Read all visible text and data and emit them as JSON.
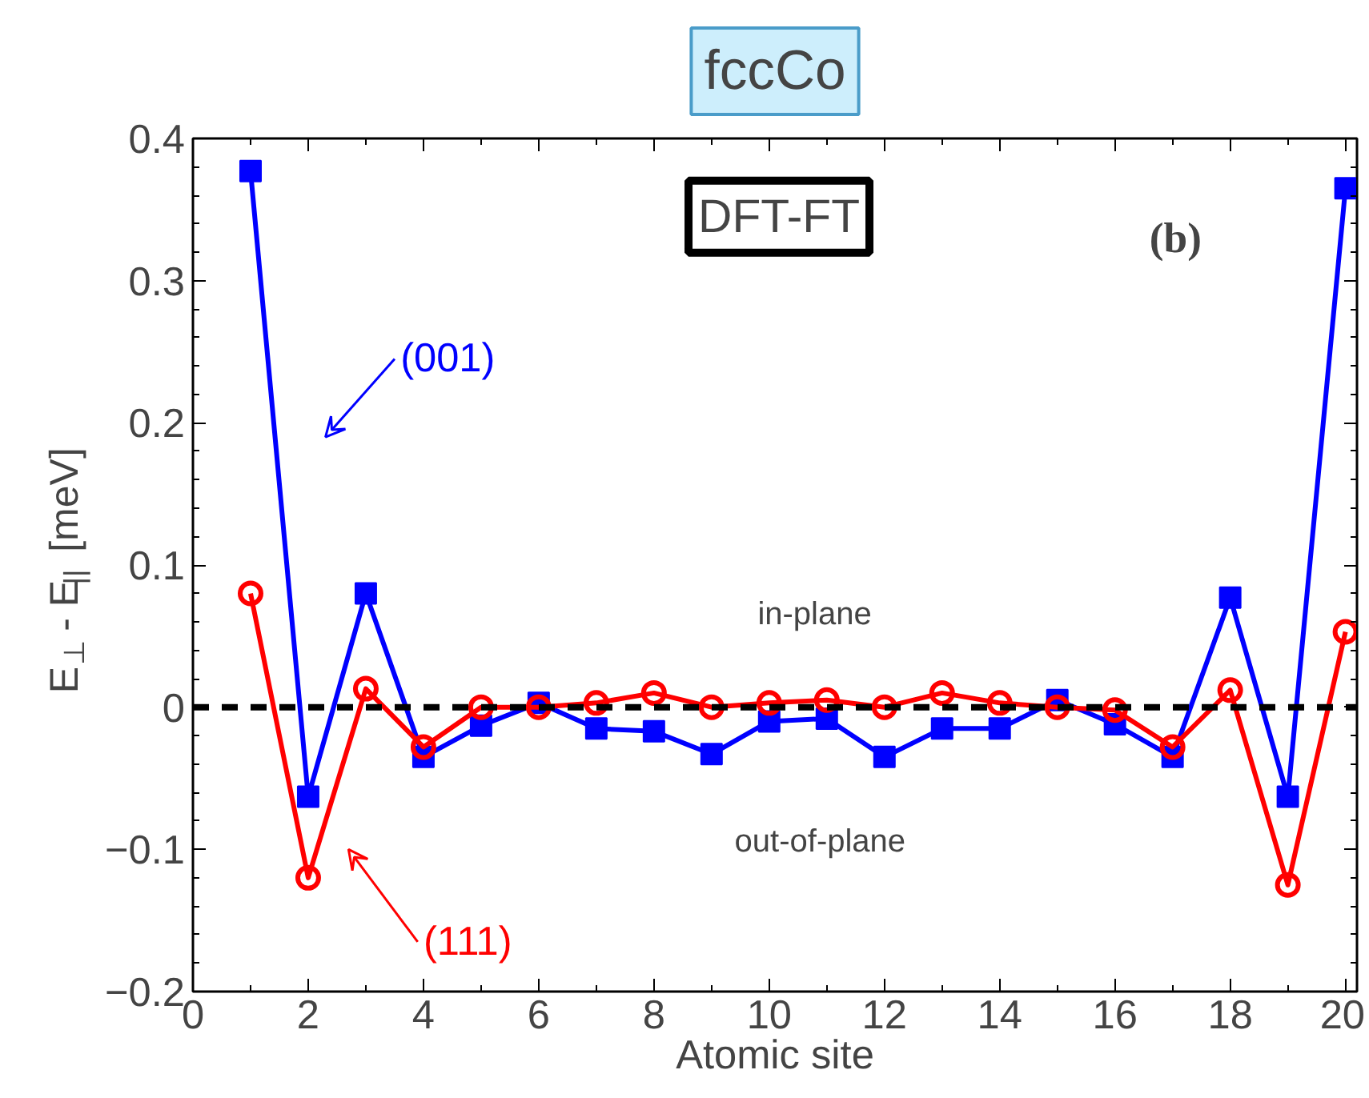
{
  "chart_data": {
    "type": "line",
    "title": "fccCo",
    "xlabel": "Atomic site",
    "ylabel": "E$_{⊥}$ - E$_{||}$ [meV]",
    "x": [
      1,
      2,
      3,
      4,
      5,
      6,
      7,
      8,
      9,
      10,
      11,
      12,
      13,
      14,
      15,
      16,
      17,
      18,
      19,
      20
    ],
    "series": [
      {
        "name": "(001)",
        "color": "#0000ff",
        "marker": "square",
        "values": [
          0.377,
          -0.063,
          0.08,
          -0.035,
          -0.013,
          0.003,
          -0.015,
          -0.017,
          -0.033,
          -0.01,
          -0.008,
          -0.035,
          -0.015,
          -0.015,
          0.005,
          -0.012,
          -0.035,
          0.077,
          -0.063,
          0.365
        ]
      },
      {
        "name": "(111)",
        "color": "#ff0000",
        "marker": "circle",
        "values": [
          0.08,
          -0.12,
          0.013,
          -0.028,
          0,
          0,
          0.003,
          0.01,
          0,
          0.003,
          0.005,
          0,
          0.01,
          0.003,
          0,
          -0.002,
          -0.028,
          0.012,
          -0.125,
          0.053
        ]
      }
    ],
    "xlim": [
      0,
      20.2
    ],
    "xticks": [
      0,
      2,
      4,
      6,
      8,
      10,
      12,
      14,
      16,
      18,
      20
    ],
    "ylim": [
      -0.2,
      0.4
    ],
    "yticks": [
      -0.2,
      -0.1,
      0,
      0.1,
      0.2,
      0.3,
      0.4
    ],
    "ref_lines": [
      {
        "axis": "y",
        "value": 0,
        "color": "#000000",
        "line_style": "dashed"
      }
    ],
    "annotations": [
      "DFT-FT",
      "(b)",
      "in-plane",
      "out-of-plane"
    ],
    "grid": false,
    "legend": false,
    "line_style": "solid"
  }
}
